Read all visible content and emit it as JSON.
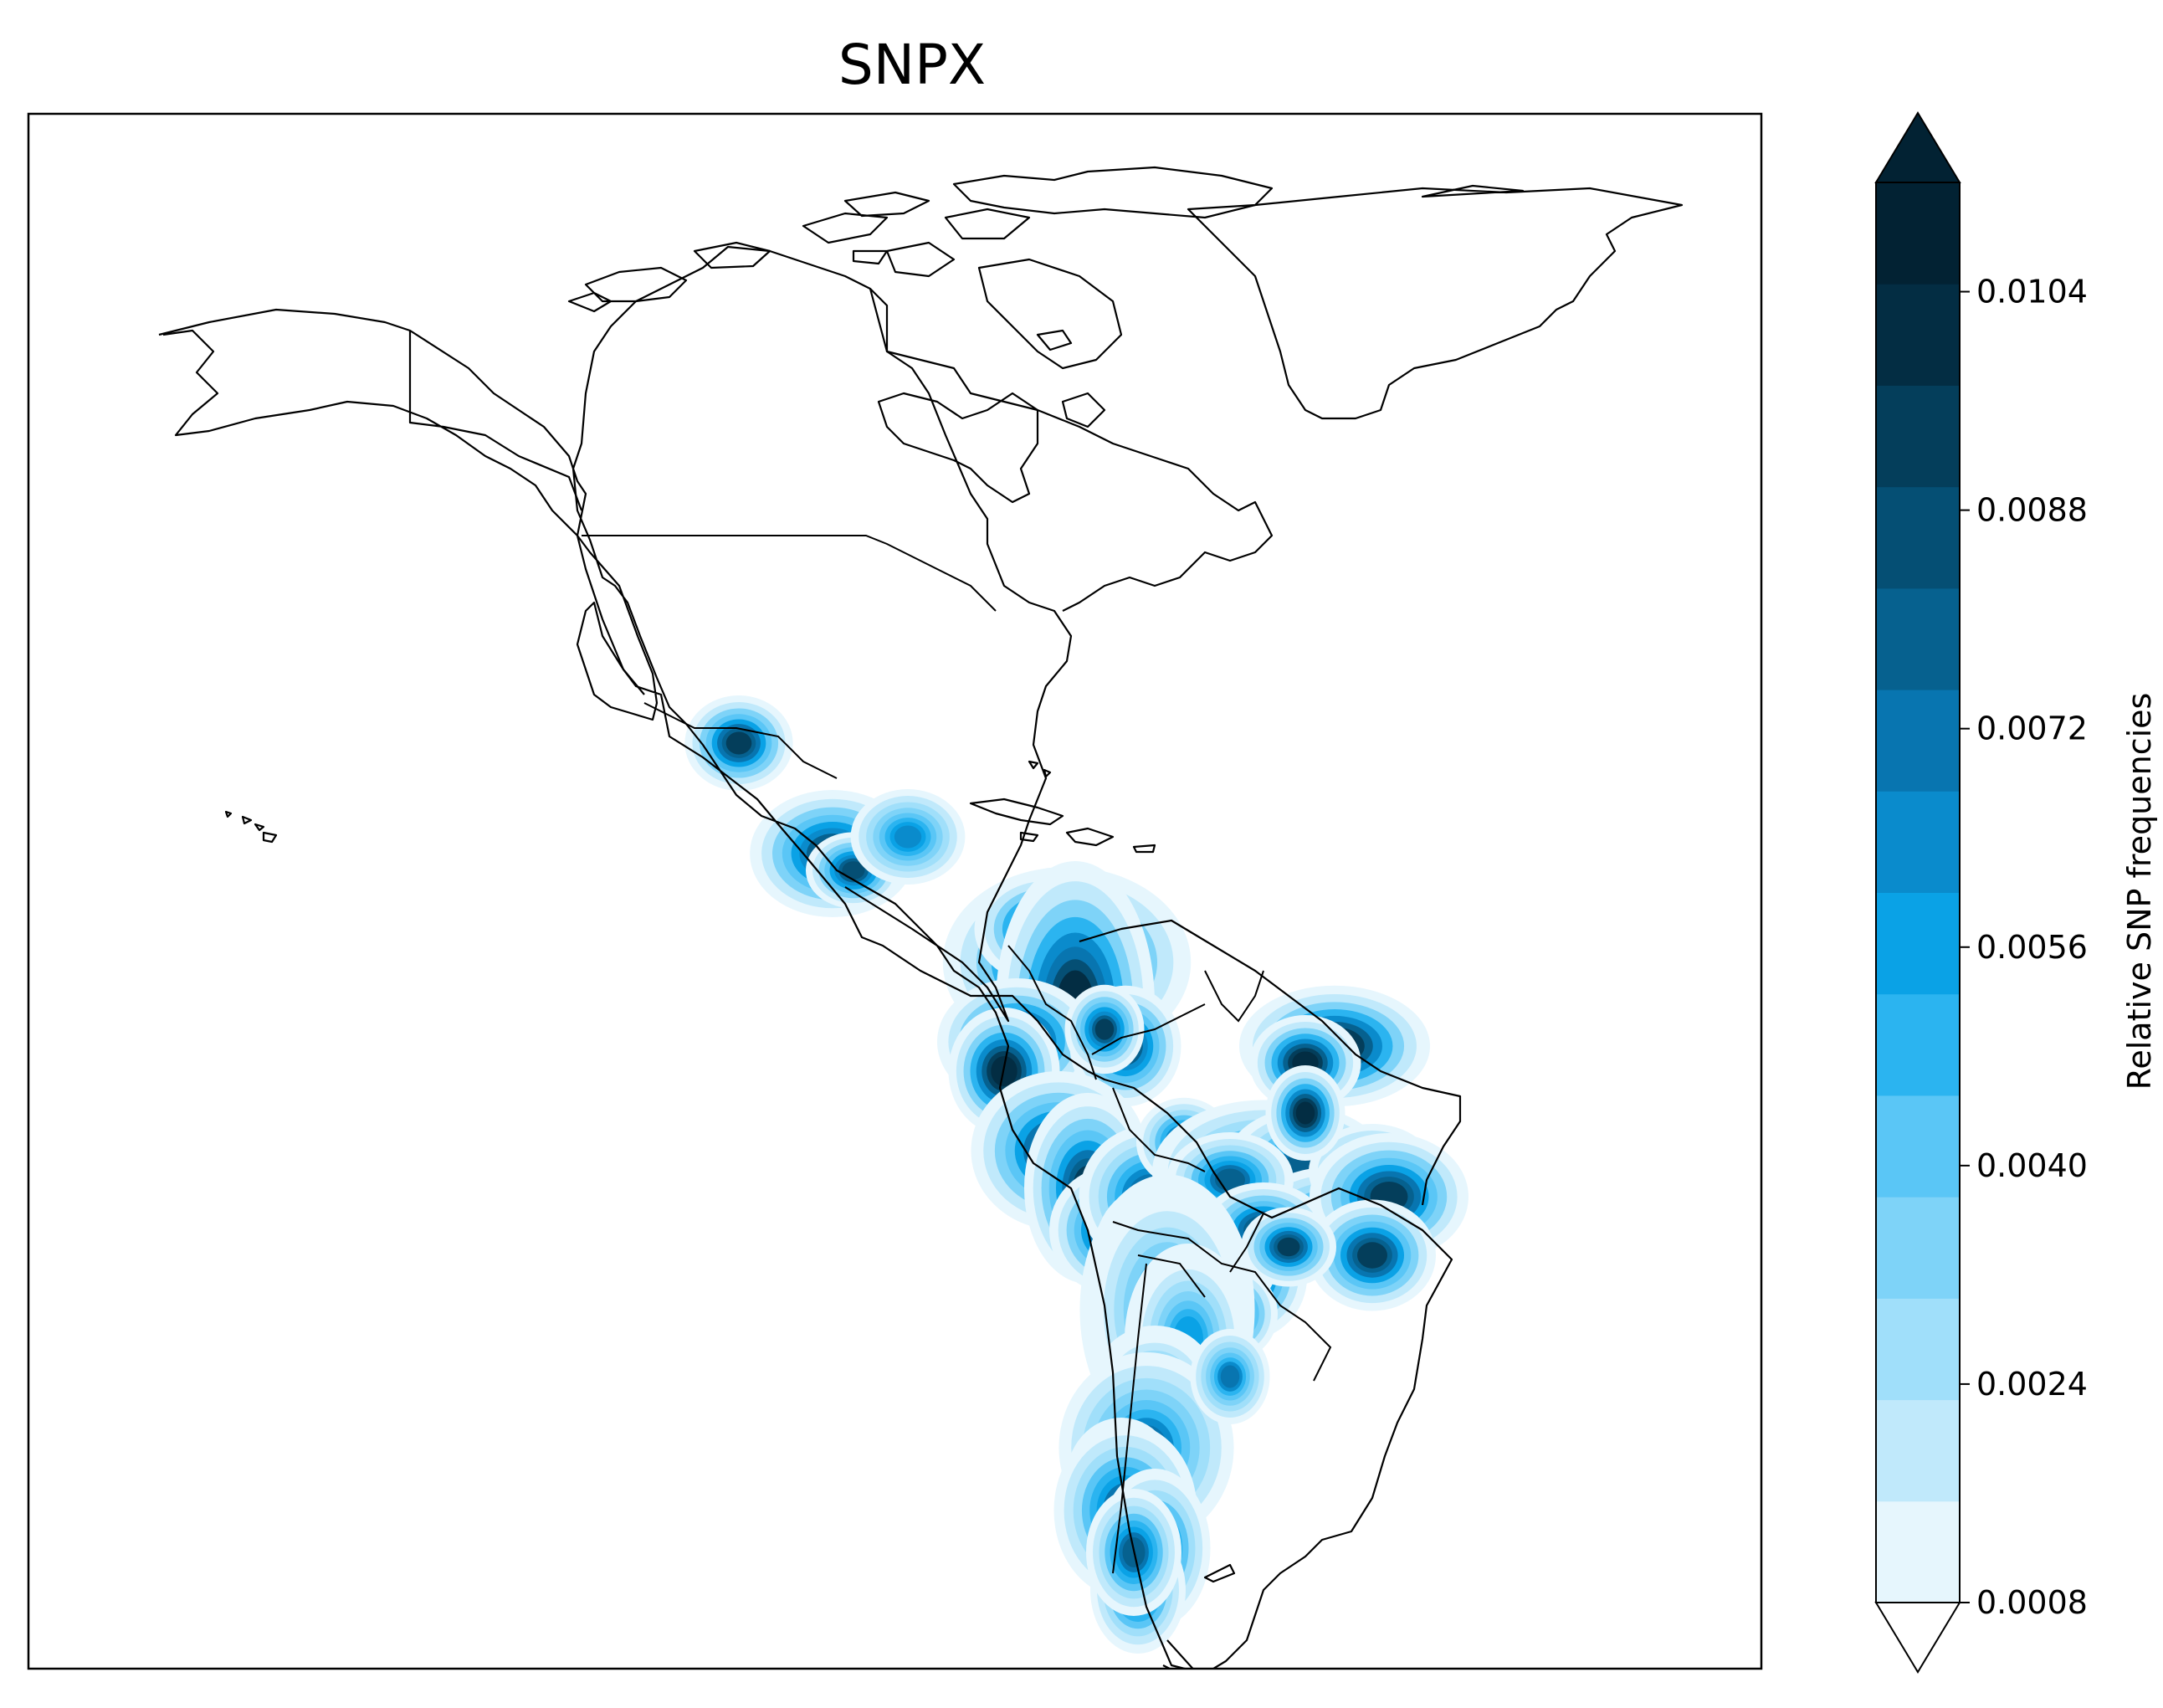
{
  "title": "SNPX",
  "colorbar": {
    "label": "Relative SNP frequencies",
    "ticks": [
      "0.0104",
      "0.0088",
      "0.0072",
      "0.0056",
      "0.0040",
      "0.0024",
      "0.0008"
    ],
    "levels": [
      0.0008,
      0.0016,
      0.0024,
      0.0032,
      0.004,
      0.0048,
      0.0056,
      0.0064,
      0.0072,
      0.008,
      0.0088,
      0.0096,
      0.0104,
      0.0112
    ],
    "colors": [
      "#e6f6fd",
      "#c0e9fb",
      "#a0dffa",
      "#7ed3f8",
      "#5ac6f6",
      "#2bb4f0",
      "#0aa2e6",
      "#0a8bcc",
      "#0875b0",
      "#06618f",
      "#054f74",
      "#043e5b",
      "#032d43",
      "#022233"
    ],
    "extend": "both"
  },
  "map": {
    "region": "Americas",
    "hotspots": [
      {
        "place": "Sonora, Mexico",
        "intensity": 0.01
      },
      {
        "place": "Jalisco, Mexico",
        "intensity": 0.0095
      },
      {
        "place": "Guatemala",
        "intensity": 0.007
      },
      {
        "place": "Colombia (north)",
        "intensity": 0.0108
      },
      {
        "place": "Ecuador",
        "intensity": 0.0112
      },
      {
        "place": "Colombia (east)",
        "intensity": 0.0096
      },
      {
        "place": "Peru",
        "intensity": 0.01
      },
      {
        "place": "Bolivia",
        "intensity": 0.009
      },
      {
        "place": "Rondônia, Brazil",
        "intensity": 0.009
      },
      {
        "place": "Central Brazil",
        "intensity": 0.0085
      },
      {
        "place": "Bahia, Brazil",
        "intensity": 0.0098
      },
      {
        "place": "Pará, Brazil",
        "intensity": 0.0112
      },
      {
        "place": "Paraguay",
        "intensity": 0.0098
      },
      {
        "place": "Northern Argentina",
        "intensity": 0.006
      },
      {
        "place": "Central Argentina",
        "intensity": 0.0075
      },
      {
        "place": "Patagonia",
        "intensity": 0.0085
      }
    ]
  }
}
